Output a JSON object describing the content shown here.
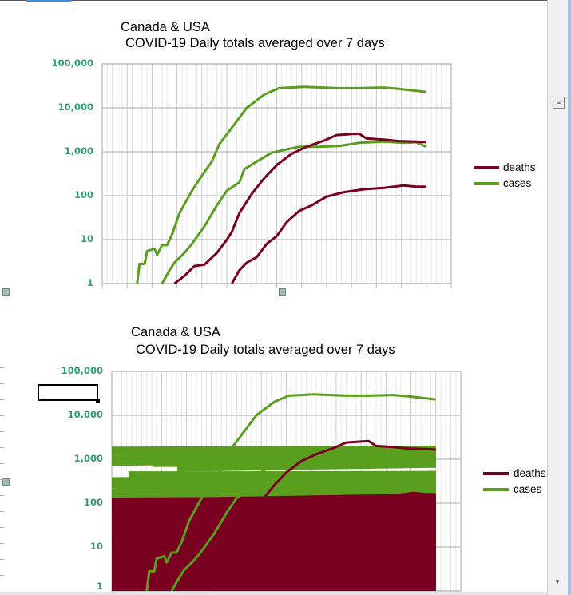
{
  "colors": {
    "deaths": "#7a0020",
    "cases": "#5a9e1e",
    "axis_label": "#2e9e6e"
  },
  "charts": [
    {
      "title_line1": "Canada & USA",
      "title_line2": "COVID-19 Daily totals averaged over 7 days",
      "legend": [
        "deaths",
        "cases"
      ]
    },
    {
      "title_line1": "Canada & USA",
      "title_line2": "COVID-19 Daily totals averaged over 7 days",
      "legend": [
        "deaths",
        "cases"
      ]
    }
  ],
  "chart_data": [
    {
      "type": "line",
      "title": "Canada & USA COVID-19 Daily totals averaged over 7 days",
      "y_scale": "log",
      "ylim": [
        1,
        100000
      ],
      "y_ticks": [
        "1",
        "10",
        "100",
        "1,000",
        "10,000",
        "100,000"
      ],
      "xlim": [
        0,
        140
      ],
      "x_tick_labels": "none",
      "grid": true,
      "legend_position": "right",
      "series": [
        {
          "name": "cases",
          "color": "#5a9e1e",
          "points": [
            [
              14,
              1
            ],
            [
              15,
              2.8
            ],
            [
              17,
              2.8
            ],
            [
              18,
              5.5
            ],
            [
              21,
              6.2
            ],
            [
              22,
              4.5
            ],
            [
              24,
              7.5
            ],
            [
              26,
              7.5
            ],
            [
              28,
              13
            ],
            [
              31,
              40
            ],
            [
              36,
              130
            ],
            [
              41,
              350
            ],
            [
              44,
              600
            ],
            [
              47,
              1500
            ],
            [
              54,
              5000
            ],
            [
              58,
              10000
            ],
            [
              65,
              20000
            ],
            [
              71,
              28000
            ],
            [
              81,
              30000
            ],
            [
              94,
              28000
            ],
            [
              103,
              28000
            ],
            [
              113,
              29000
            ],
            [
              119,
              27000
            ],
            [
              130,
              23000
            ]
          ]
        },
        {
          "name": "cases",
          "color": "#5a9e1e",
          "points": [
            [
              24,
              1
            ],
            [
              27,
              2
            ],
            [
              29,
              3
            ],
            [
              33,
              5
            ],
            [
              36,
              8
            ],
            [
              41,
              20
            ],
            [
              46,
              60
            ],
            [
              50,
              130
            ],
            [
              55,
              200
            ],
            [
              57,
              400
            ],
            [
              62,
              600
            ],
            [
              68,
              950
            ],
            [
              73,
              1100
            ],
            [
              79,
              1300
            ],
            [
              87,
              1300
            ],
            [
              95,
              1350
            ],
            [
              103,
              1600
            ],
            [
              113,
              1700
            ],
            [
              121,
              1600
            ],
            [
              126,
              1650
            ],
            [
              130,
              1300
            ]
          ]
        },
        {
          "name": "deaths",
          "color": "#7a0020",
          "points": [
            [
              29,
              1
            ],
            [
              33,
              1.5
            ],
            [
              37,
              2.5
            ],
            [
              41,
              2.7
            ],
            [
              46,
              5
            ],
            [
              50,
              10
            ],
            [
              52,
              15
            ],
            [
              55,
              40
            ],
            [
              60,
              110
            ],
            [
              65,
              250
            ],
            [
              70,
              500
            ],
            [
              76,
              900
            ],
            [
              82,
              1300
            ],
            [
              89,
              1800
            ],
            [
              94,
              2400
            ],
            [
              103,
              2600
            ],
            [
              106,
              2000
            ],
            [
              113,
              1900
            ],
            [
              119,
              1750
            ],
            [
              126,
              1700
            ],
            [
              130,
              1650
            ]
          ]
        },
        {
          "name": "deaths",
          "color": "#7a0020",
          "points": [
            [
              52,
              1
            ],
            [
              55,
              2
            ],
            [
              58,
              3
            ],
            [
              62,
              4
            ],
            [
              66,
              8
            ],
            [
              70,
              12
            ],
            [
              74,
              25
            ],
            [
              79,
              45
            ],
            [
              84,
              60
            ],
            [
              90,
              95
            ],
            [
              97,
              120
            ],
            [
              105,
              140
            ],
            [
              113,
              150
            ],
            [
              121,
              170
            ],
            [
              126,
              160
            ],
            [
              130,
              160
            ]
          ]
        }
      ]
    },
    {
      "type": "line",
      "title": "Canada & USA COVID-19 Daily totals averaged over 7 days",
      "y_scale": "log",
      "ylim": [
        1,
        100000
      ],
      "y_ticks": [
        "1",
        "10",
        "100",
        "1,000",
        "10,000",
        "100,000"
      ],
      "xlim": [
        0,
        140
      ],
      "grid": true,
      "legend_position": "right",
      "series_names": [
        "deaths",
        "cases"
      ]
    }
  ]
}
